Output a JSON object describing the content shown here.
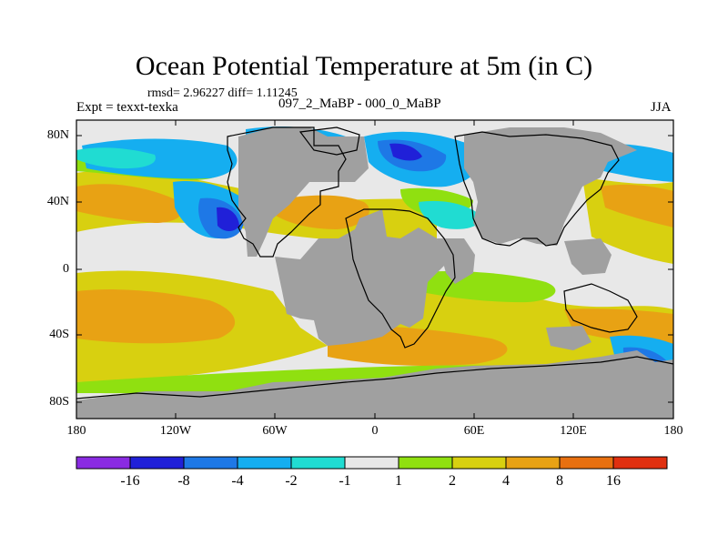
{
  "title": "Ocean Potential Temperature at 5m (in C)",
  "stats": "rmsd= 2.96227 diff= 1.11245",
  "experiment": "Expt = texxt-texka",
  "difference_label": "097_2_MaBP - 000_0_MaBP",
  "season": "JJA",
  "lat_labels": [
    "80N",
    "40N",
    "0",
    "40S",
    "80S"
  ],
  "lon_labels": [
    "180",
    "120W",
    "60W",
    "0",
    "60E",
    "120E",
    "180"
  ],
  "colorbar": {
    "colors": [
      "#8a2be2",
      "#2020d8",
      "#1e78e6",
      "#15aef0",
      "#20dcd2",
      "#e8e8e8",
      "#90e010",
      "#d8d010",
      "#e8a214",
      "#e87010",
      "#e03010"
    ],
    "labels": [
      "-16",
      "-8",
      "-4",
      "-2",
      "-1",
      "1",
      "2",
      "4",
      "8",
      "16"
    ]
  },
  "map_colors": {
    "land": "#a0a0a0",
    "neutral": "#e8e8e8",
    "warm_light": "#d8d010",
    "warm_med": "#e8a214",
    "green": "#90e010",
    "cool": "#15aef0",
    "cyan": "#20dcd2",
    "blue": "#1e78e6",
    "deep_blue": "#2020d8"
  }
}
